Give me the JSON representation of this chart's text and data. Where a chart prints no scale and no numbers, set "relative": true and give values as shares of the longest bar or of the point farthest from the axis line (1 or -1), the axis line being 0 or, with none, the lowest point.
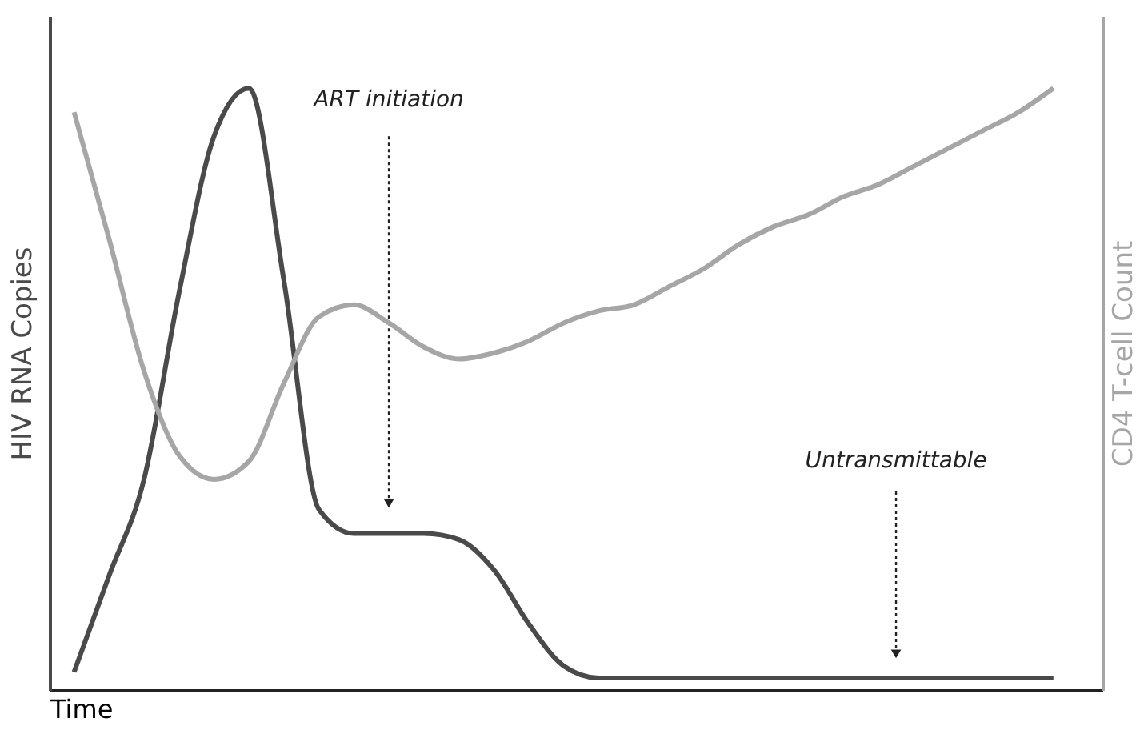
{
  "chart_data": {
    "type": "line",
    "relative": true,
    "xlabel": "Time",
    "ylabel": "HIV RNA Copies",
    "y2label": "CD4 T-cell Count",
    "categories": [
      null,
      null,
      null,
      null,
      null,
      null,
      null,
      null,
      null,
      null,
      null,
      null,
      null,
      null,
      null,
      null,
      null,
      null,
      null,
      null,
      null,
      null,
      null,
      null,
      null,
      null,
      null,
      null,
      null
    ],
    "series": [
      {
        "color": "#4a4a4a",
        "axis": "y",
        "values": [
          0.03,
          0.19,
          0.35,
          0.66,
          0.92,
          1.0,
          0.68,
          0.3,
          0.26,
          0.26,
          0.26,
          0.25,
          0.2,
          0.11,
          0.04,
          0.02,
          0.02,
          0.02,
          0.02,
          0.02,
          0.02,
          0.02,
          0.02,
          0.02,
          0.02,
          0.02,
          0.02,
          0.02,
          0.02
        ]
      },
      {
        "color": "#a6a6a6",
        "values": [
          0.96,
          0.75,
          0.53,
          0.39,
          0.35,
          0.38,
          0.51,
          0.62,
          0.64,
          0.61,
          0.57,
          0.55,
          0.56,
          0.58,
          0.61,
          0.63,
          0.64,
          0.67,
          0.7,
          0.74,
          0.77,
          0.79,
          0.82,
          0.84,
          0.87,
          0.9,
          0.93,
          0.96,
          1.0
        ]
      }
    ],
    "annotations": [
      "ART initiation",
      "Untransmittable"
    ]
  }
}
